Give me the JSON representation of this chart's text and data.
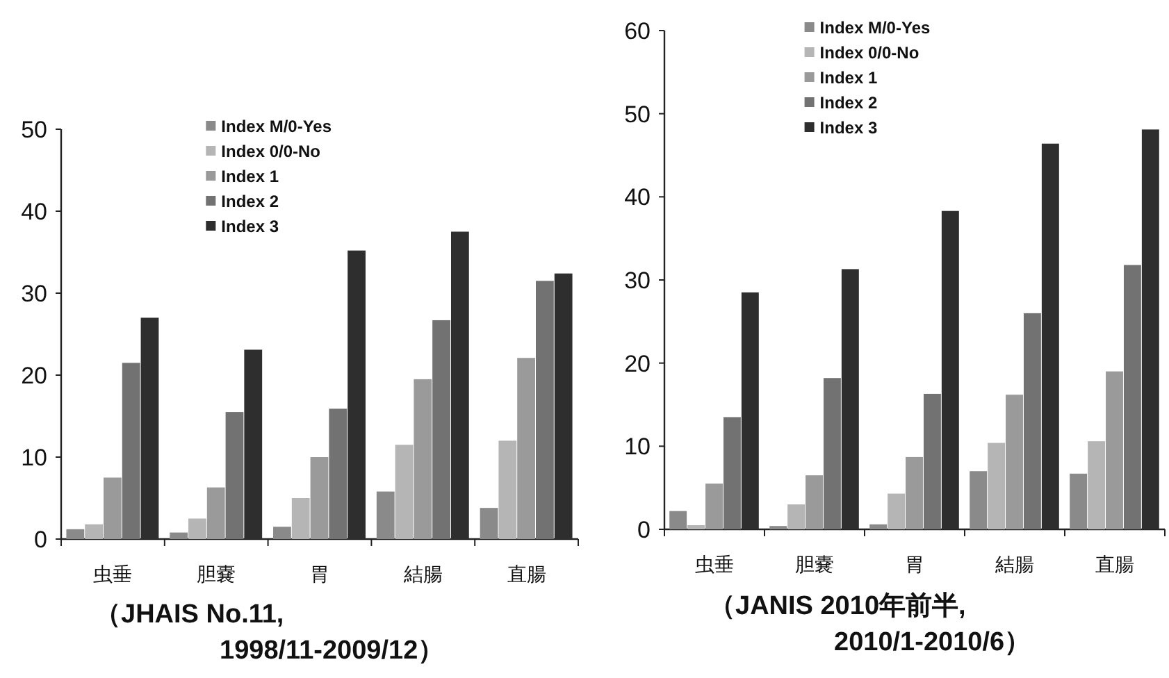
{
  "chart_data": [
    {
      "type": "bar",
      "categories": [
        "虫垂",
        "胆嚢",
        "胃",
        "結腸",
        "直腸"
      ],
      "series": [
        {
          "name": "Index M/0-Yes",
          "color": "#8a8a8a",
          "values": [
            1.2,
            0.8,
            1.5,
            5.8,
            3.8
          ]
        },
        {
          "name": "Index 0/0-No",
          "color": "#b5b5b5",
          "values": [
            1.8,
            2.5,
            5.0,
            11.5,
            12.0
          ]
        },
        {
          "name": "Index 1",
          "color": "#9a9a9a",
          "values": [
            7.5,
            6.3,
            10.0,
            19.5,
            22.1
          ]
        },
        {
          "name": "Index 2",
          "color": "#727272",
          "values": [
            21.5,
            15.5,
            15.9,
            26.7,
            31.5
          ]
        },
        {
          "name": "Index 3",
          "color": "#2e2e2e",
          "values": [
            27.0,
            23.1,
            35.2,
            37.5,
            32.4
          ]
        }
      ],
      "ylim": [
        0,
        50
      ],
      "yticks": [
        0,
        10,
        20,
        30,
        40,
        50
      ],
      "legend": "top",
      "annotations": [
        "（JHAIS  No.11,",
        "1998/11-2009/12）"
      ]
    },
    {
      "type": "bar",
      "categories": [
        "虫垂",
        "胆嚢",
        "胃",
        "結腸",
        "直腸"
      ],
      "series": [
        {
          "name": "Index M/0-Yes",
          "color": "#8a8a8a",
          "values": [
            2.2,
            0.4,
            0.6,
            7.0,
            6.7
          ]
        },
        {
          "name": "Index 0/0-No",
          "color": "#b5b5b5",
          "values": [
            0.5,
            3.0,
            4.3,
            10.4,
            10.6
          ]
        },
        {
          "name": "Index 1",
          "color": "#9a9a9a",
          "values": [
            5.5,
            6.5,
            8.7,
            16.2,
            19.0
          ]
        },
        {
          "name": "Index 2",
          "color": "#727272",
          "values": [
            13.5,
            18.2,
            16.3,
            26.0,
            31.8
          ]
        },
        {
          "name": "Index 3",
          "color": "#2e2e2e",
          "values": [
            28.5,
            31.3,
            38.3,
            46.4,
            48.1
          ]
        }
      ],
      "ylim": [
        0,
        60
      ],
      "yticks": [
        0,
        10,
        20,
        30,
        40,
        50,
        60
      ],
      "legend": "top",
      "annotations": [
        "（JANIS  2010年前半,",
        "2010/1-2010/6）"
      ]
    }
  ]
}
